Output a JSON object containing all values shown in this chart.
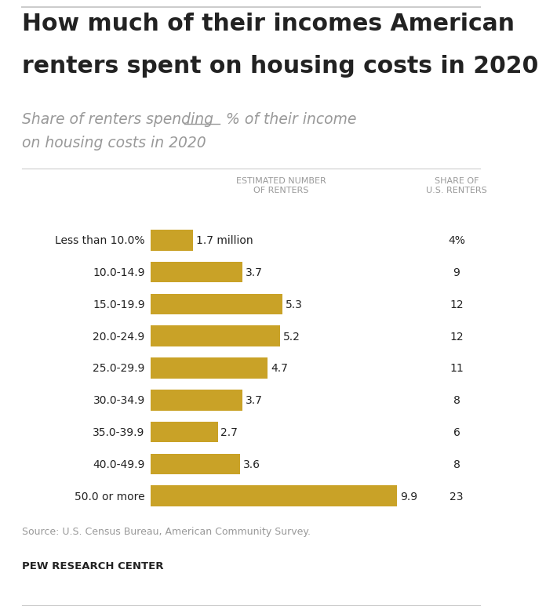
{
  "title_line1": "How much of their incomes American",
  "title_line2": "renters spent on housing costs in 2020",
  "subtitle_part1": "Share of renters spending ",
  "subtitle_part2": " % of their income",
  "subtitle_line2": "on housing costs in 2020",
  "col_header1": "ESTIMATED NUMBER\nOF RENTERS",
  "col_header2": "SHARE OF\nU.S. RENTERS",
  "categories": [
    "Less than 10.0%",
    "10.0-14.9",
    "15.0-19.9",
    "20.0-24.9",
    "25.0-29.9",
    "30.0-34.9",
    "35.0-39.9",
    "40.0-49.9",
    "50.0 or more"
  ],
  "values": [
    1.7,
    3.7,
    5.3,
    5.2,
    4.7,
    3.7,
    2.7,
    3.6,
    9.9
  ],
  "value_labels": [
    "1.7 million",
    "3.7",
    "5.3",
    "5.2",
    "4.7",
    "3.7",
    "2.7",
    "3.6",
    "9.9"
  ],
  "share_labels": [
    "4%",
    "9",
    "12",
    "12",
    "11",
    "8",
    "6",
    "8",
    "23"
  ],
  "bar_color": "#C9A227",
  "background_color": "#FFFFFF",
  "text_dark": "#222222",
  "text_gray": "#999999",
  "text_mid": "#555555",
  "source_text": "Source: U.S. Census Bureau, American Community Survey.",
  "footer_text": "PEW RESEARCH CENTER",
  "bar_max": 10.5
}
